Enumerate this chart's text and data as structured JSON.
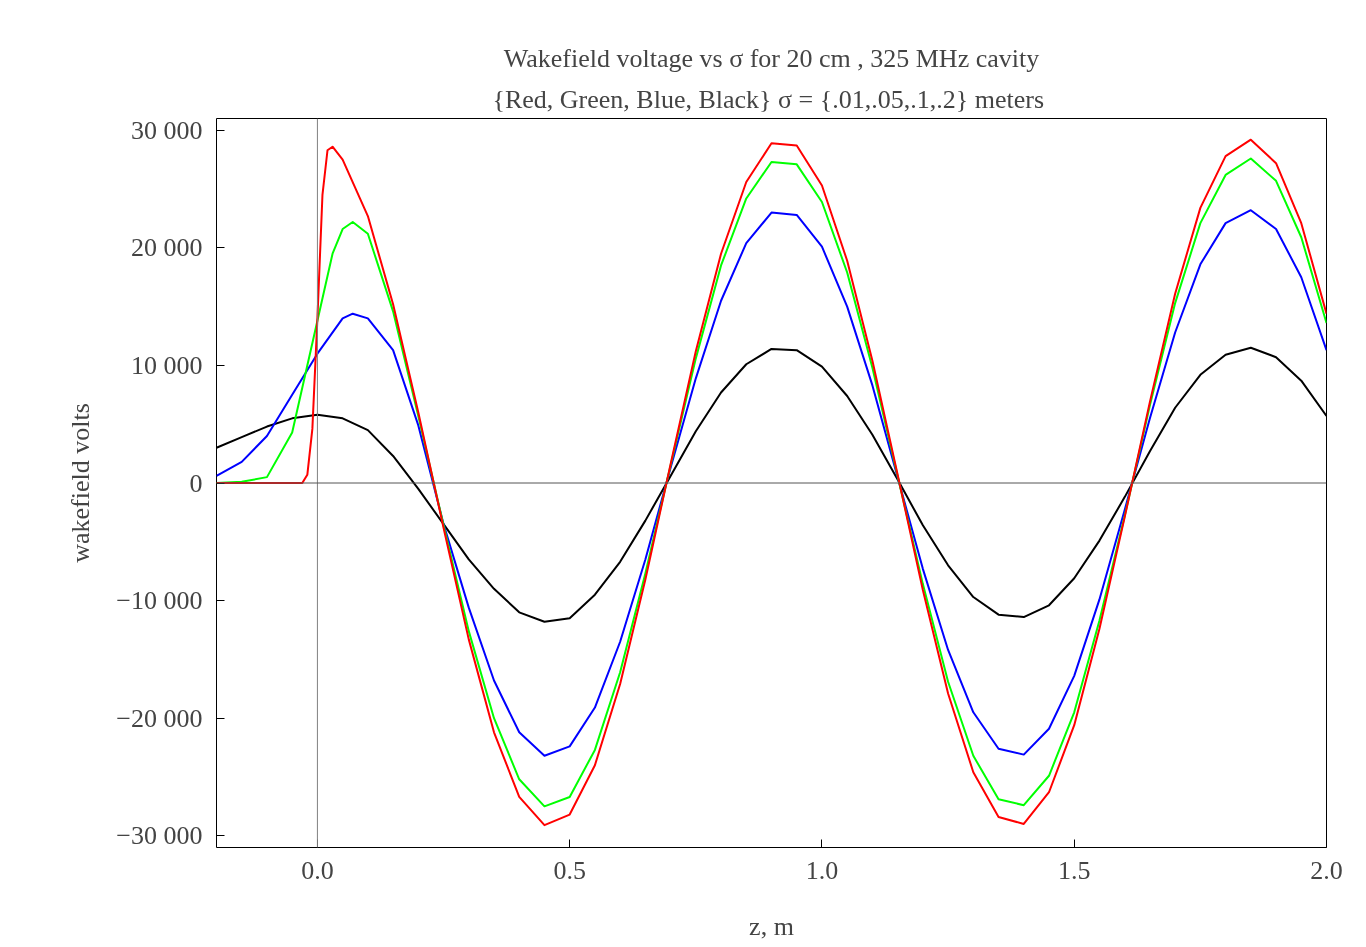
{
  "chart_data": {
    "type": "line",
    "title": "Wakefield voltage vs σ for 20 cm , 325 MHz cavity",
    "subtitle": "{Red, Green, Blue, Black}  σ = {.01,.05,.1,.2} meters",
    "xlabel": "z, m",
    "ylabel": "wakefield volts",
    "xlim": [
      -0.2,
      2.0
    ],
    "ylim": [
      -31000,
      31000
    ],
    "xticks": [
      {
        "value": 0,
        "label": "0.0"
      },
      {
        "value": 0.5,
        "label": "0.5"
      },
      {
        "value": 1,
        "label": "1.0"
      },
      {
        "value": 1.5,
        "label": "1.5"
      },
      {
        "value": 2,
        "label": "2.0"
      }
    ],
    "yticks": [
      {
        "value": -30000,
        "label": "−30 000"
      },
      {
        "value": -20000,
        "label": "−20 000"
      },
      {
        "value": -10000,
        "label": "−10 000"
      },
      0,
      {
        "value": 10000,
        "label": "10 000"
      },
      {
        "value": 20000,
        "label": "20 000"
      },
      {
        "value": 30000,
        "label": "30 000"
      }
    ],
    "grid": false,
    "line_style": "solid",
    "marker": "none",
    "ref_lines": [
      {
        "axis": "x",
        "value": 0,
        "color": "#808080"
      },
      {
        "axis": "y",
        "value": 0,
        "color": "#555555"
      }
    ],
    "series": [
      {
        "color": "#ff0000",
        "x": [
          -0.2,
          -0.1,
          -0.03,
          -0.02,
          -0.01,
          0,
          0.01,
          0.02,
          0.03,
          0.05,
          0.1,
          0.15,
          0.2,
          0.25,
          0.3,
          0.35,
          0.4,
          0.45,
          0.5,
          0.55,
          0.6,
          0.65,
          0.7,
          0.75,
          0.8,
          0.85,
          0.9,
          0.95,
          1.0,
          1.05,
          1.1,
          1.15,
          1.2,
          1.25,
          1.3,
          1.35,
          1.4,
          1.45,
          1.5,
          1.55,
          1.6,
          1.65,
          1.7,
          1.75,
          1.8,
          1.85,
          1.9,
          1.95,
          2.0
        ],
        "values": [
          0,
          0,
          0,
          700,
          4600,
          14000,
          24500,
          28300,
          28600,
          27500,
          22700,
          15200,
          6000,
          -3800,
          -13300,
          -21200,
          -26700,
          -29100,
          -28200,
          -24000,
          -17100,
          -8200,
          1600,
          11200,
          19500,
          25600,
          28900,
          28700,
          25300,
          18900,
          10400,
          700,
          -9100,
          -17900,
          -24600,
          -28400,
          -29000,
          -26300,
          -20600,
          -12400,
          -2900,
          6900,
          16100,
          23400,
          27800,
          29200,
          27200,
          22100,
          14400
        ]
      },
      {
        "color": "#00ff00",
        "x": [
          -0.2,
          -0.15,
          -0.1,
          -0.05,
          0,
          0.03,
          0.05,
          0.07,
          0.1,
          0.15,
          0.2,
          0.25,
          0.3,
          0.35,
          0.4,
          0.45,
          0.5,
          0.55,
          0.6,
          0.65,
          0.7,
          0.75,
          0.8,
          0.85,
          0.9,
          0.95,
          1.0,
          1.05,
          1.1,
          1.15,
          1.2,
          1.25,
          1.3,
          1.35,
          1.4,
          1.45,
          1.5,
          1.55,
          1.6,
          1.65,
          1.7,
          1.75,
          1.8,
          1.85,
          1.9,
          1.95,
          2.0
        ],
        "values": [
          0,
          100,
          500,
          4300,
          13800,
          19500,
          21600,
          22200,
          21200,
          14600,
          5700,
          -3600,
          -12600,
          -20000,
          -25200,
          -27500,
          -26700,
          -22700,
          -16100,
          -7700,
          1500,
          10600,
          18500,
          24200,
          27300,
          27100,
          23900,
          17900,
          9800,
          600,
          -8600,
          -16900,
          -23200,
          -26900,
          -27400,
          -24900,
          -19500,
          -11700,
          -2800,
          6600,
          15300,
          22100,
          26200,
          27600,
          25700,
          20900,
          13600
        ]
      },
      {
        "color": "#0000ff",
        "x": [
          -0.2,
          -0.15,
          -0.1,
          -0.05,
          0,
          0.05,
          0.07,
          0.1,
          0.15,
          0.2,
          0.25,
          0.3,
          0.35,
          0.4,
          0.45,
          0.5,
          0.55,
          0.6,
          0.65,
          0.7,
          0.75,
          0.8,
          0.85,
          0.9,
          0.95,
          1.0,
          1.05,
          1.1,
          1.15,
          1.2,
          1.25,
          1.3,
          1.35,
          1.4,
          1.45,
          1.5,
          1.55,
          1.6,
          1.65,
          1.7,
          1.75,
          1.8,
          1.85,
          1.9,
          1.95,
          2.0
        ],
        "values": [
          600,
          1800,
          4000,
          7500,
          11000,
          14000,
          14400,
          14000,
          11300,
          4900,
          -3500,
          -10600,
          -16800,
          -21200,
          -23200,
          -22400,
          -19100,
          -13500,
          -6500,
          1300,
          8900,
          15500,
          20400,
          23000,
          22800,
          20100,
          15000,
          8300,
          500,
          -7300,
          -14200,
          -19500,
          -22600,
          -23100,
          -20900,
          -16400,
          -9900,
          -2300,
          5500,
          12800,
          18600,
          22100,
          23200,
          21600,
          17500,
          11300
        ]
      },
      {
        "color": "#000000",
        "x": [
          -0.2,
          -0.15,
          -0.1,
          -0.05,
          0,
          0.05,
          0.1,
          0.15,
          0.2,
          0.25,
          0.3,
          0.35,
          0.4,
          0.45,
          0.5,
          0.55,
          0.6,
          0.65,
          0.7,
          0.75,
          0.8,
          0.85,
          0.9,
          0.95,
          1.0,
          1.05,
          1.1,
          1.15,
          1.2,
          1.25,
          1.3,
          1.35,
          1.4,
          1.45,
          1.5,
          1.55,
          1.6,
          1.65,
          1.7,
          1.75,
          1.8,
          1.85,
          1.9,
          1.95,
          2.0
        ],
        "values": [
          3000,
          3900,
          4800,
          5500,
          5800,
          5500,
          4500,
          2300,
          -500,
          -3500,
          -6500,
          -9000,
          -11000,
          -11800,
          -11500,
          -9500,
          -6700,
          -3200,
          600,
          4400,
          7700,
          10100,
          11400,
          11300,
          9900,
          7400,
          4100,
          300,
          -3600,
          -7000,
          -9700,
          -11200,
          -11400,
          -10400,
          -8100,
          -4900,
          -1200,
          2700,
          6400,
          9200,
          10900,
          11500,
          10700,
          8700,
          5700
        ]
      }
    ]
  }
}
